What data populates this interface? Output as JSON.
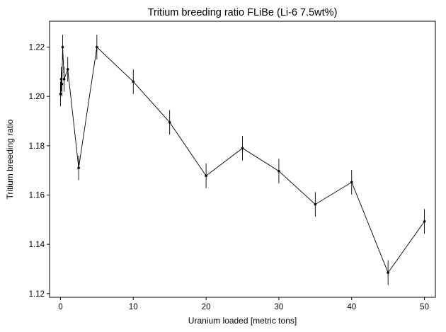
{
  "chart_data": {
    "type": "line",
    "title": "Tritium breeding ratio FLiBe (Li-6 7.5wt%)",
    "xlabel": "Uranium loaded [metric tons]",
    "ylabel": "Tritium breeding ratio",
    "xlim": [
      -1.5,
      51.5
    ],
    "ylim": [
      1.1185,
      1.2305
    ],
    "xticks": [
      0,
      10,
      20,
      30,
      40,
      50
    ],
    "yticks": [
      1.12,
      1.14,
      1.16,
      1.18,
      1.2,
      1.22
    ],
    "ytick_labels": [
      "1.12",
      "1.14",
      "1.16",
      "1.18",
      "1.20",
      "1.22"
    ],
    "grid": false,
    "series": [
      {
        "color": "#000000",
        "x": [
          0,
          0.1,
          0.2,
          0.3,
          0.5,
          1,
          2.5,
          5,
          10,
          15,
          20,
          25,
          30,
          35,
          40,
          45,
          50
        ],
        "y": [
          1.201,
          1.207,
          1.205,
          1.22,
          1.207,
          1.211,
          1.171,
          1.22,
          1.206,
          1.1895,
          1.1678,
          1.179,
          1.1697,
          1.1562,
          1.1652,
          1.1285,
          1.1493
        ],
        "yerr": [
          0.005,
          0.005,
          0.005,
          0.005,
          0.005,
          0.005,
          0.005,
          0.005,
          0.005,
          0.005,
          0.005,
          0.005,
          0.005,
          0.005,
          0.005,
          0.005,
          0.005
        ]
      }
    ]
  }
}
